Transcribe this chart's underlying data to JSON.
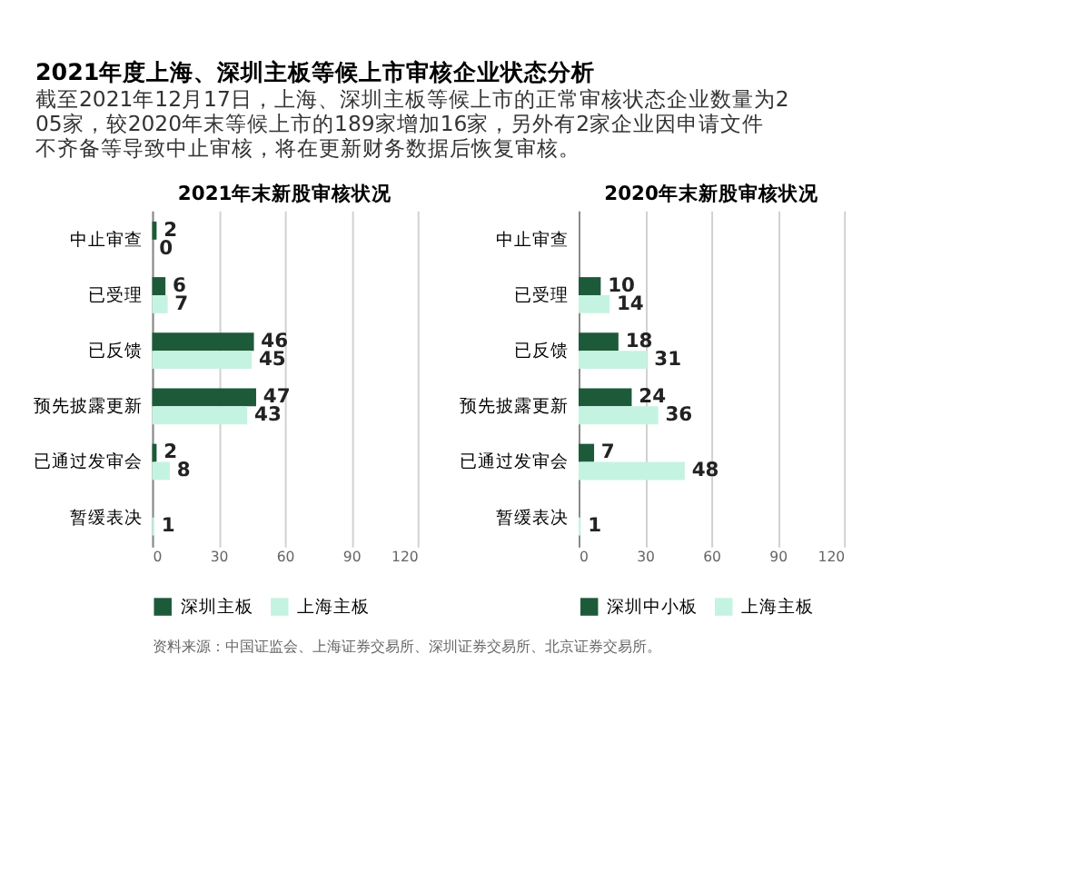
{
  "chart_data": [
    {
      "type": "other",
      "title": "2021年度上海、深圳主板等候上市审核企业状态分析",
      "subtitle": "截至2021年12月17日，上海、深圳主板等候上市的正常审核状态企业数量为205家，较2020年末等候上市的189家增加16家，另外有2家企业因申请文件不齐备等导致中止审核，将在更新财务数据后恢复审核。",
      "annotations": [
        "资料来源：中国证监会、上海证券交易所、深圳证券交易所、北京证券交易所。"
      ]
    },
    {
      "type": "bar",
      "orientation": "horizontal",
      "title": "2021年末新股审核状况",
      "categories": [
        "中止审查",
        "已受理",
        "已反馈",
        "预先披露更新",
        "已通过发审会",
        "暂缓表决"
      ],
      "series": [
        {
          "name": "深圳主板",
          "color": "#1d5a3a",
          "values": [
            2,
            6,
            46,
            47,
            2,
            null
          ]
        },
        {
          "name": "上海主板",
          "color": "#c5f3e2",
          "values": [
            0,
            7,
            45,
            43,
            8,
            1
          ]
        }
      ],
      "xlim": [
        0,
        120
      ],
      "xticks": [
        0,
        30,
        60,
        90,
        120
      ],
      "grid": "x",
      "legend": "bottom",
      "data_labels": true
    },
    {
      "type": "bar",
      "orientation": "horizontal",
      "title": "2020年末新股审核状况",
      "categories": [
        "中止审查",
        "已受理",
        "已反馈",
        "预先披露更新",
        "已通过发审会",
        "暂缓表决"
      ],
      "series": [
        {
          "name": "深圳中小板",
          "color": "#1d5a3a",
          "values": [
            null,
            10,
            18,
            24,
            7,
            null
          ]
        },
        {
          "name": "上海主板",
          "color": "#c5f3e2",
          "values": [
            null,
            14,
            31,
            36,
            48,
            1
          ]
        }
      ],
      "xlim": [
        0,
        120
      ],
      "xticks": [
        0,
        30,
        60,
        90,
        120
      ],
      "grid": "x",
      "legend": "bottom",
      "data_labels": true
    }
  ]
}
